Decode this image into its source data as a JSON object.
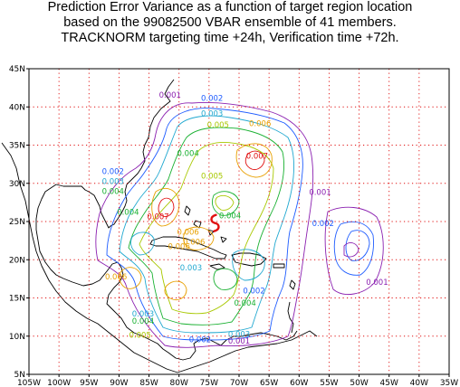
{
  "title": {
    "line1": "Prediction Error Variance as a function of target region location",
    "line2": "based on the 99082500 VBAR ensemble of 41 members.",
    "line3": "TRACKNORM targeting time +24h, Verification time +72h."
  },
  "axes": {
    "x_ticks": [
      "105W",
      "100W",
      "95W",
      "90W",
      "85W",
      "80W",
      "75W",
      "70W",
      "65W",
      "60W",
      "55W",
      "50W",
      "45W",
      "40W",
      "35W"
    ],
    "y_ticks": [
      "5N",
      "10N",
      "15N",
      "20N",
      "25N",
      "30N",
      "35N",
      "40N",
      "45N"
    ]
  },
  "contour_colors": {
    "0.001": "#8b20b0",
    "0.002": "#1e5cff",
    "0.003": "#20a8d0",
    "0.004": "#18b030",
    "0.005": "#a8c800",
    "0.006": "#e8a000",
    "0.007": "#e01010"
  },
  "contour_labels": [
    {
      "text": "0.001",
      "lon": -81.5,
      "lat": 41.2,
      "color": "#8b20b0"
    },
    {
      "text": "0.002",
      "lon": -74.5,
      "lat": 40.8,
      "color": "#1e5cff"
    },
    {
      "text": "0.003",
      "lon": -74.5,
      "lat": 38.8,
      "color": "#20a8d0"
    },
    {
      "text": "0.005",
      "lon": -73.5,
      "lat": 37.3,
      "color": "#a8c800"
    },
    {
      "text": "0.006",
      "lon": -66.5,
      "lat": 37.5,
      "color": "#e8a000"
    },
    {
      "text": "0.007",
      "lon": -67.0,
      "lat": 33.2,
      "color": "#e01010"
    },
    {
      "text": "0.004",
      "lon": -78.5,
      "lat": 33.6,
      "color": "#18b030"
    },
    {
      "text": "0.005",
      "lon": -74.5,
      "lat": 30.6,
      "color": "#a8c800"
    },
    {
      "text": "0.002",
      "lon": -91.0,
      "lat": 31.2,
      "color": "#1e5cff"
    },
    {
      "text": "0.003",
      "lon": -91.0,
      "lat": 29.9,
      "color": "#20a8d0"
    },
    {
      "text": "0.004",
      "lon": -91.0,
      "lat": 28.6,
      "color": "#18b030"
    },
    {
      "text": "0.004",
      "lon": -88.5,
      "lat": 25.9,
      "color": "#18b030"
    },
    {
      "text": "0.007",
      "lon": -83.5,
      "lat": 25.3,
      "color": "#e01010"
    },
    {
      "text": "0.004",
      "lon": -71.5,
      "lat": 25.4,
      "color": "#18b030"
    },
    {
      "text": "0.006",
      "lon": -78.5,
      "lat": 23.3,
      "color": "#e8a000"
    },
    {
      "text": "0.006",
      "lon": -77.5,
      "lat": 22.0,
      "color": "#e8a000"
    },
    {
      "text": "0.006",
      "lon": -80.0,
      "lat": 21.4,
      "color": "#e8a000"
    },
    {
      "text": "0.006",
      "lon": -90.5,
      "lat": 17.4,
      "color": "#e8a000"
    },
    {
      "text": "0.003",
      "lon": -78.0,
      "lat": 18.6,
      "color": "#20a8d0"
    },
    {
      "text": "0.002",
      "lon": -67.5,
      "lat": 15.6,
      "color": "#1e5cff"
    },
    {
      "text": "0.004",
      "lon": -69.0,
      "lat": 14.0,
      "color": "#18b030"
    },
    {
      "text": "0.003",
      "lon": -86.0,
      "lat": 12.6,
      "color": "#20a8d0"
    },
    {
      "text": "0.004",
      "lon": -86.0,
      "lat": 11.6,
      "color": "#18b030"
    },
    {
      "text": "0.005",
      "lon": -86.5,
      "lat": 9.8,
      "color": "#a8c800"
    },
    {
      "text": "0.002",
      "lon": -76.5,
      "lat": 9.2,
      "color": "#1e5cff"
    },
    {
      "text": "0.003",
      "lon": -70.0,
      "lat": 9.9,
      "color": "#20a8d0"
    },
    {
      "text": "0.001",
      "lon": -70.0,
      "lat": 9.0,
      "color": "#8b20b0"
    },
    {
      "text": "0.001",
      "lon": -56.5,
      "lat": 28.5,
      "color": "#8b20b0"
    },
    {
      "text": "0.002",
      "lon": -56.0,
      "lat": 24.4,
      "color": "#1e5cff"
    },
    {
      "text": "0.001",
      "lon": -47.0,
      "lat": 16.7,
      "color": "#8b20b0"
    }
  ],
  "storm_marker": {
    "symbol": "hurricane-icon",
    "lon": -74.0,
    "lat": 24.8,
    "color": "#e01010"
  }
}
